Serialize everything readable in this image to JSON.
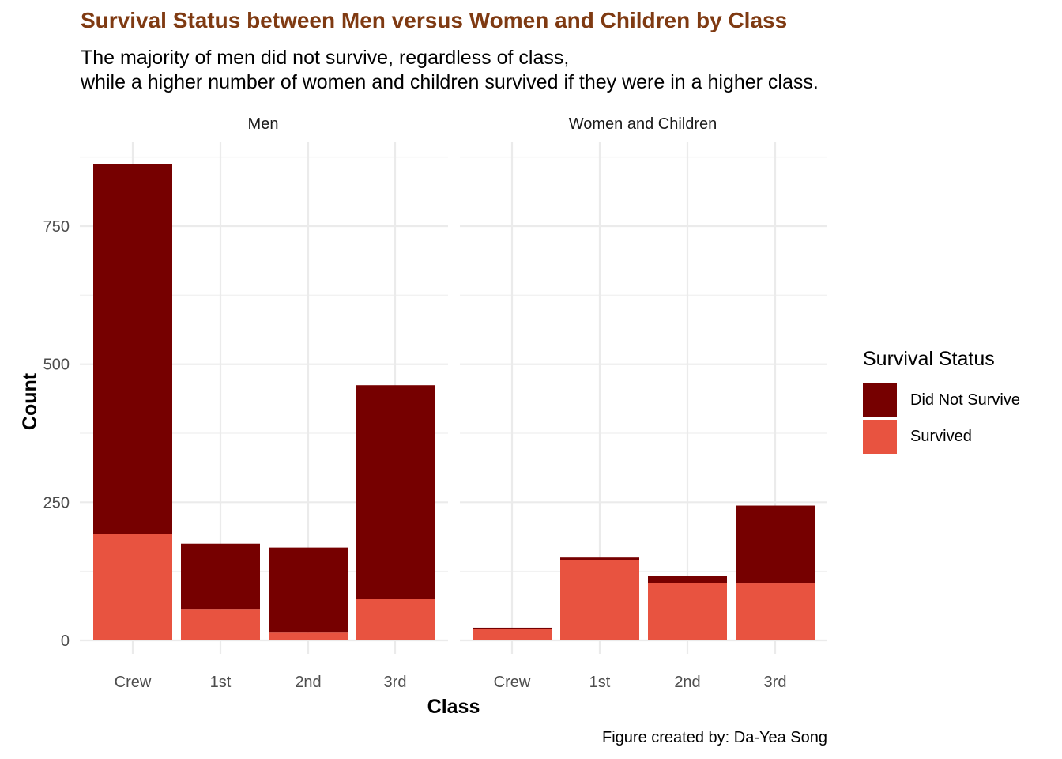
{
  "title": "Survival Status between Men versus Women and Children by Class",
  "subtitle_line1": "The majority of men did not survive, regardless of class,",
  "subtitle_line2": "while a higher number of women and children survived if they were in a higher class.",
  "caption": "Figure created by: Da-Yea Song",
  "colors": {
    "title": "#7F3A12",
    "did_not_survive": "#760000",
    "survived": "#E85340",
    "grid": "#EBEBEB"
  },
  "chart_data": {
    "type": "bar",
    "stacked": true,
    "xlabel": "Class",
    "ylabel": "Count",
    "ylim": [
      0,
      870
    ],
    "yticks": [
      0,
      250,
      500,
      750
    ],
    "grid": true,
    "legend": {
      "title": "Survival Status",
      "position": "right",
      "entries": [
        "Did Not Survive",
        "Survived"
      ]
    },
    "categories": [
      "Crew",
      "1st",
      "2nd",
      "3rd"
    ],
    "facets": [
      {
        "name": "Men",
        "series": [
          {
            "name": "Survived",
            "values": [
              192,
              57,
              14,
              75
            ]
          },
          {
            "name": "Did Not Survive",
            "values": [
              670,
              118,
              154,
              387
            ]
          }
        ]
      },
      {
        "name": "Women and Children",
        "series": [
          {
            "name": "Survived",
            "values": [
              20,
              146,
              104,
              103
            ]
          },
          {
            "name": "Did Not Survive",
            "values": [
              3,
              4,
              13,
              141
            ]
          }
        ]
      }
    ]
  }
}
